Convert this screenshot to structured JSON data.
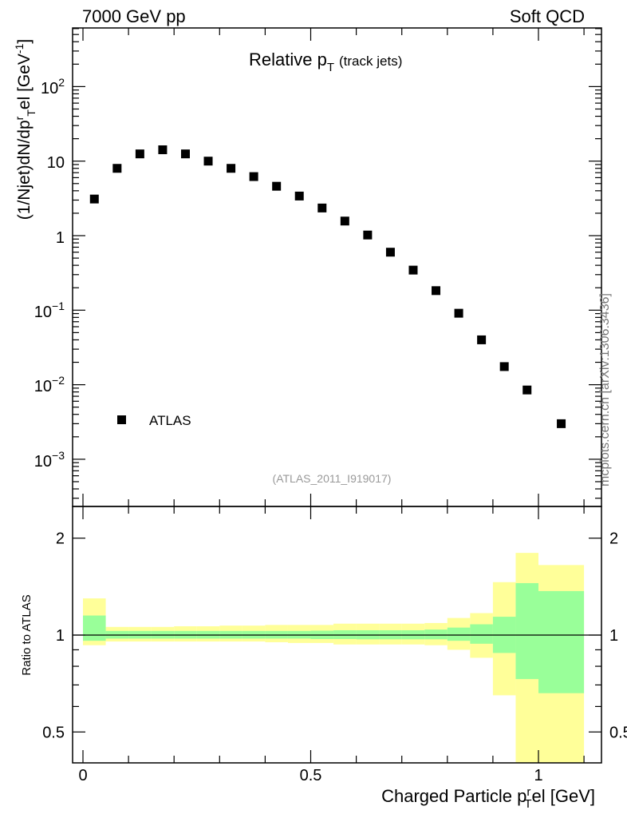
{
  "header": {
    "left": "7000 GeV pp",
    "right": "Soft QCD"
  },
  "side_label": "mcplots.cern.ch [arXiv:1306.3436]",
  "chart_data": [
    {
      "type": "scatter",
      "panel": "main",
      "title_main": "Relative p",
      "title_sub": "T",
      "title_note": "(track jets)",
      "ylabel": "(1/Njet)dN/dp",
      "ylabel_parts": {
        "sup1": "r",
        "sub": "T",
        "mid": "el [GeV",
        "sup2": "-1",
        "end": "]"
      },
      "yscale": "log",
      "ylim": [
        0.0003,
        700
      ],
      "xlim": [
        -0.025,
        1.1
      ],
      "ytick_labels": [
        {
          "value": 100,
          "base": "10",
          "exp": "2"
        },
        {
          "value": 10,
          "base": "10",
          "exp": ""
        },
        {
          "value": 1,
          "base": "1",
          "exp": ""
        },
        {
          "value": 0.1,
          "base": "10",
          "exp": "−1"
        },
        {
          "value": 0.01,
          "base": "10",
          "exp": "−2"
        },
        {
          "value": 0.001,
          "base": "10",
          "exp": "−3"
        }
      ],
      "legend": {
        "label": "ATLAS",
        "position": "lower-left"
      },
      "analysis_id": "(ATLAS_2011_I919017)",
      "series": [
        {
          "name": "ATLAS",
          "x": [
            0.025,
            0.075,
            0.125,
            0.175,
            0.225,
            0.275,
            0.325,
            0.375,
            0.425,
            0.475,
            0.525,
            0.575,
            0.625,
            0.675,
            0.725,
            0.775,
            0.825,
            0.875,
            0.925,
            0.975,
            1.05
          ],
          "values": [
            3.1,
            8.0,
            12.5,
            14.2,
            12.5,
            10.0,
            8.0,
            6.2,
            4.6,
            3.4,
            2.35,
            1.57,
            1.02,
            0.6,
            0.345,
            0.183,
            0.091,
            0.04,
            0.0175,
            0.0085,
            0.003
          ]
        }
      ]
    },
    {
      "type": "area",
      "panel": "ratio",
      "ylabel": "Ratio to ATLAS",
      "xlabel": "Charged Particle p",
      "xlabel_sup": "r",
      "xlabel_sub": "T",
      "xlabel_end": "el [GeV]",
      "xlim": [
        -0.025,
        1.1
      ],
      "ylim": [
        0.35,
        2.3
      ],
      "ytick_labels": [
        "2",
        "1",
        "0.5"
      ],
      "ytick_values": [
        2,
        1,
        0.5
      ],
      "xtick_labels": [
        "0",
        "0.5",
        "1"
      ],
      "xtick_values": [
        0,
        0.5,
        1
      ],
      "reference_line": 1,
      "bins": [
        0,
        0.05,
        0.1,
        0.15,
        0.2,
        0.25,
        0.3,
        0.35,
        0.4,
        0.45,
        0.5,
        0.55,
        0.6,
        0.65,
        0.7,
        0.75,
        0.8,
        0.85,
        0.9,
        0.95,
        1.0,
        1.1
      ],
      "band_inner": {
        "color": "#99ff99",
        "lo": [
          0.96,
          0.975,
          0.975,
          0.975,
          0.975,
          0.975,
          0.975,
          0.975,
          0.975,
          0.975,
          0.972,
          0.972,
          0.97,
          0.97,
          0.97,
          0.97,
          0.96,
          0.94,
          0.88,
          0.73,
          0.66
        ],
        "hi": [
          1.15,
          1.03,
          1.03,
          1.03,
          1.03,
          1.03,
          1.03,
          1.03,
          1.03,
          1.03,
          1.032,
          1.035,
          1.035,
          1.035,
          1.035,
          1.04,
          1.055,
          1.08,
          1.14,
          1.45,
          1.37
        ]
      },
      "band_outer": {
        "color": "#ffff99",
        "lo": [
          0.93,
          0.955,
          0.955,
          0.955,
          0.955,
          0.955,
          0.955,
          0.955,
          0.95,
          0.945,
          0.945,
          0.935,
          0.935,
          0.935,
          0.935,
          0.93,
          0.9,
          0.85,
          0.65,
          0.35,
          0.35
        ],
        "hi": [
          1.3,
          1.06,
          1.06,
          1.06,
          1.065,
          1.065,
          1.07,
          1.07,
          1.075,
          1.075,
          1.075,
          1.085,
          1.085,
          1.085,
          1.085,
          1.09,
          1.13,
          1.17,
          1.46,
          1.8,
          1.65
        ]
      }
    }
  ]
}
